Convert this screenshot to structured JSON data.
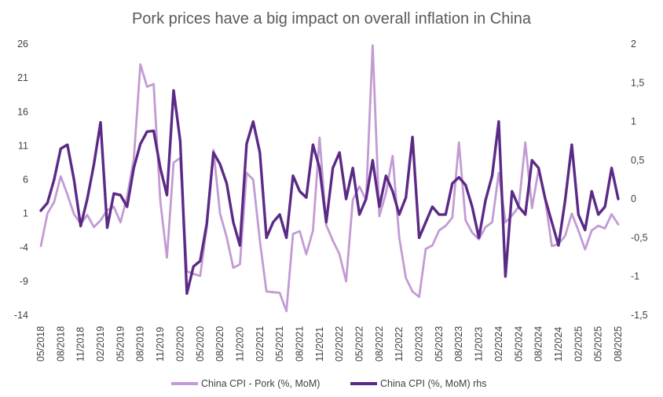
{
  "chart_data": {
    "type": "line",
    "title": "Pork prices have a big impact on overall inflation in China",
    "xlabel": "",
    "ylabel": "",
    "x_tick_labels": [
      "05/2018",
      "08/2018",
      "11/2018",
      "02/2019",
      "05/2019",
      "08/2019",
      "11/2019",
      "02/2020",
      "05/2020",
      "08/2020",
      "11/2020",
      "02/2021",
      "05/2021",
      "08/2021",
      "11/2021",
      "02/2022",
      "05/2022",
      "08/2022",
      "11/2022",
      "02/2023",
      "05/2023",
      "08/2023",
      "11/2023",
      "02/2024",
      "05/2024",
      "08/2024",
      "11/2024",
      "02/2025",
      "05/2025",
      "08/2025"
    ],
    "y_left": {
      "ticks": [
        "26",
        "21",
        "16",
        "11",
        "6",
        "1",
        "-4",
        "-9",
        "-14"
      ],
      "ylim": [
        -14,
        26
      ]
    },
    "y_right": {
      "ticks": [
        "2",
        "1,5",
        "1",
        "0,5",
        "0",
        "-0,5",
        "-1",
        "-1,5"
      ],
      "ylim": [
        -1.5,
        2
      ]
    },
    "grid": false,
    "legend_position": "bottom",
    "months": [
      "2018-05",
      "2018-06",
      "2018-07",
      "2018-08",
      "2018-09",
      "2018-10",
      "2018-11",
      "2018-12",
      "2019-01",
      "2019-02",
      "2019-03",
      "2019-04",
      "2019-05",
      "2019-06",
      "2019-07",
      "2019-08",
      "2019-09",
      "2019-10",
      "2019-11",
      "2019-12",
      "2020-01",
      "2020-02",
      "2020-03",
      "2020-04",
      "2020-05",
      "2020-06",
      "2020-07",
      "2020-08",
      "2020-09",
      "2020-10",
      "2020-11",
      "2020-12",
      "2021-01",
      "2021-02",
      "2021-03",
      "2021-04",
      "2021-05",
      "2021-06",
      "2021-07",
      "2021-08",
      "2021-09",
      "2021-10",
      "2021-11",
      "2021-12",
      "2022-01",
      "2022-02",
      "2022-03",
      "2022-04",
      "2022-05",
      "2022-06",
      "2022-07",
      "2022-08",
      "2022-09",
      "2022-10",
      "2022-11",
      "2022-12",
      "2023-01",
      "2023-02",
      "2023-03",
      "2023-04",
      "2023-05",
      "2023-06",
      "2023-07",
      "2023-08",
      "2023-09",
      "2023-10",
      "2023-11",
      "2023-12",
      "2024-01",
      "2024-02",
      "2024-03",
      "2024-04",
      "2024-05",
      "2024-06",
      "2024-07",
      "2024-08",
      "2024-09",
      "2024-10",
      "2024-11",
      "2024-12",
      "2025-01",
      "2025-02",
      "2025-03",
      "2025-04",
      "2025-05",
      "2025-06",
      "2025-07",
      "2025-08"
    ],
    "series": [
      {
        "name": "China CPI - Pork (%, MoM)",
        "axis": "left",
        "color": "#c39bd3",
        "values": [
          -3.8,
          1.0,
          2.7,
          6.5,
          3.8,
          0.9,
          -0.5,
          0.8,
          -1.0,
          0.0,
          1.5,
          2.0,
          -0.3,
          3.5,
          9.0,
          23.0,
          19.7,
          20.1,
          2.8,
          -5.5,
          8.5,
          9.2,
          -7.5,
          -7.9,
          -8.2,
          -1.0,
          10.4,
          1.0,
          -2.5,
          -7.0,
          -6.5,
          7.0,
          6.0,
          -3.0,
          -10.5,
          -10.6,
          -10.7,
          -13.4,
          -2.0,
          -1.6,
          -5.0,
          -1.5,
          12.2,
          -0.7,
          -3.0,
          -5.0,
          -9.0,
          3.0,
          5.0,
          3.0,
          25.8,
          0.6,
          4.0,
          9.5,
          -2.5,
          -8.5,
          -10.5,
          -11.3,
          -4.2,
          -3.7,
          -1.5,
          -0.8,
          0.4,
          11.5,
          0.0,
          -1.8,
          -2.8,
          -1.0,
          -0.3,
          7.0,
          -0.3,
          0.7,
          2.0,
          11.5,
          1.8,
          7.5,
          3.0,
          -3.8,
          -3.5,
          -2.3,
          1.0,
          -1.5,
          -4.3,
          -1.5,
          -0.8,
          -1.2,
          0.9,
          -0.6
        ]
      },
      {
        "name": "China CPI  (%, MoM) rhs",
        "axis": "right",
        "color": "#5b2a86",
        "values": [
          -0.15,
          -0.05,
          0.25,
          0.65,
          0.7,
          0.25,
          -0.35,
          0.0,
          0.45,
          0.99,
          -0.37,
          0.07,
          0.05,
          -0.1,
          0.4,
          0.71,
          0.87,
          0.88,
          0.4,
          0.05,
          1.4,
          0.75,
          -1.22,
          -0.87,
          -0.8,
          -0.32,
          0.6,
          0.45,
          0.2,
          -0.3,
          -0.6,
          0.71,
          1.0,
          0.6,
          -0.5,
          -0.3,
          -0.2,
          -0.5,
          0.3,
          0.1,
          0.02,
          0.7,
          0.4,
          -0.3,
          0.4,
          0.6,
          0.0,
          0.4,
          -0.2,
          0.0,
          0.5,
          -0.1,
          0.3,
          0.1,
          -0.2,
          0.02,
          0.8,
          -0.5,
          -0.3,
          -0.1,
          -0.2,
          -0.2,
          0.2,
          0.28,
          0.18,
          -0.1,
          -0.5,
          -0.02,
          0.3,
          1.0,
          -1.0,
          0.1,
          -0.1,
          -0.2,
          0.5,
          0.4,
          0.0,
          -0.3,
          -0.6,
          -0.02,
          0.7,
          -0.2,
          -0.4,
          0.1,
          -0.2,
          -0.1,
          0.4,
          0.0
        ]
      }
    ]
  }
}
